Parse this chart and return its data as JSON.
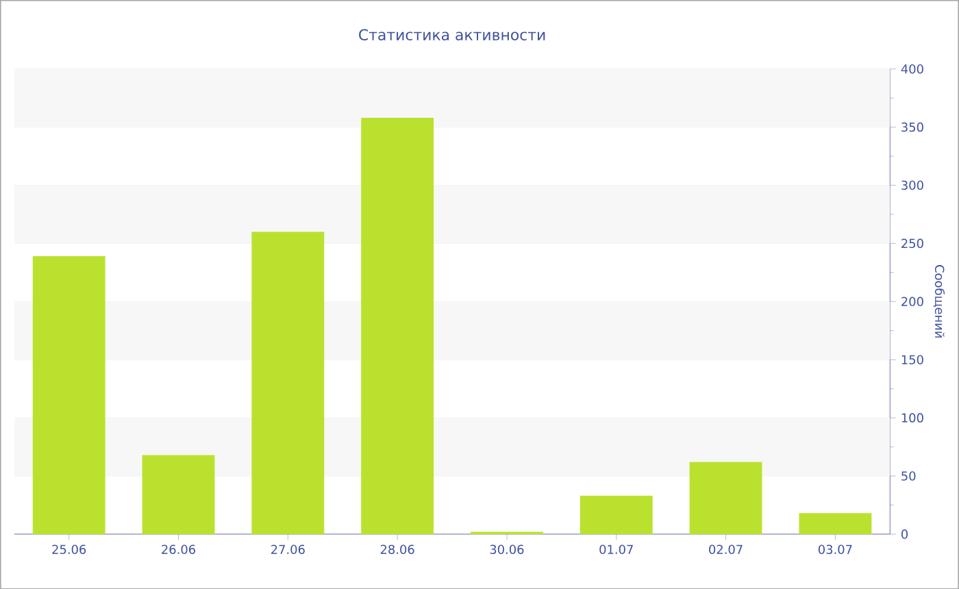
{
  "chart_data": {
    "type": "bar",
    "title": "Статистика активности",
    "ylabel": "Сообщений",
    "categories": [
      "25.06",
      "26.06",
      "27.06",
      "28.06",
      "30.06",
      "01.07",
      "02.07",
      "03.07"
    ],
    "values": [
      239,
      68,
      260,
      358,
      2,
      33,
      62,
      18
    ],
    "color": "#bbe12f",
    "ylim": [
      0,
      400
    ],
    "yticks": [
      0,
      50,
      100,
      150,
      200,
      250,
      300,
      350,
      400
    ],
    "grid": "y"
  }
}
